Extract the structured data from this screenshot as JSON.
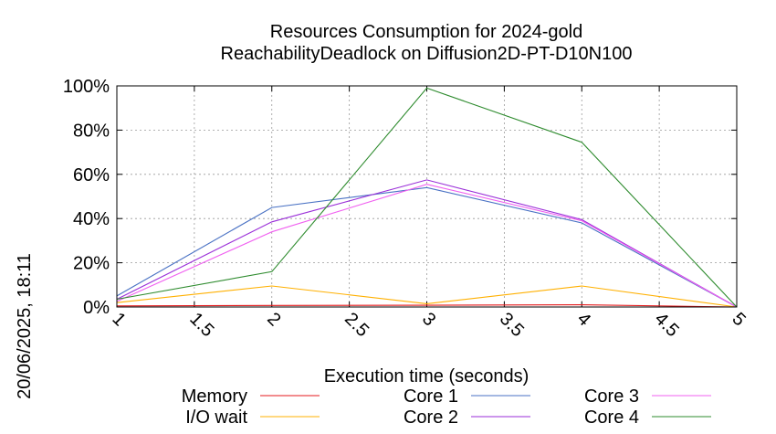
{
  "timestamp": "20/06/2025, 18:11",
  "chart_data": {
    "type": "line",
    "title": [
      "Resources Consumption for 2024-gold",
      "ReachabilityDeadlock on Diffusion2D-PT-D10N100"
    ],
    "xlabel": "Execution time (seconds)",
    "ylabel": "",
    "xlim": [
      1,
      5
    ],
    "ylim": [
      0,
      100
    ],
    "xticks": [
      "1",
      "1.5",
      "2",
      "2.5",
      "3",
      "3.5",
      "4",
      "4.5",
      "5"
    ],
    "yticks": [
      "0%",
      "20%",
      "40%",
      "60%",
      "80%",
      "100%"
    ],
    "grid": true,
    "legend_position": "bottom",
    "x": [
      1,
      2,
      3,
      4,
      5
    ],
    "series": [
      {
        "name": "Memory",
        "color": "#e41a1c",
        "values": [
          0.5,
          0.7,
          0.8,
          1.0,
          0
        ]
      },
      {
        "name": "I/O wait",
        "color": "#ffb000",
        "values": [
          2,
          9.5,
          1.5,
          9.5,
          0
        ]
      },
      {
        "name": "Core 1",
        "color": "#4a72c4",
        "values": [
          5,
          45,
          54,
          38,
          0
        ]
      },
      {
        "name": "Core 2",
        "color": "#9a2ed8",
        "values": [
          3.5,
          38.5,
          57.5,
          39.5,
          0
        ]
      },
      {
        "name": "Core 3",
        "color": "#f060f0",
        "values": [
          2.5,
          34,
          55.5,
          39,
          0
        ]
      },
      {
        "name": "Core 4",
        "color": "#2e8b2e",
        "values": [
          3.5,
          16,
          99,
          74.5,
          0
        ]
      }
    ]
  }
}
